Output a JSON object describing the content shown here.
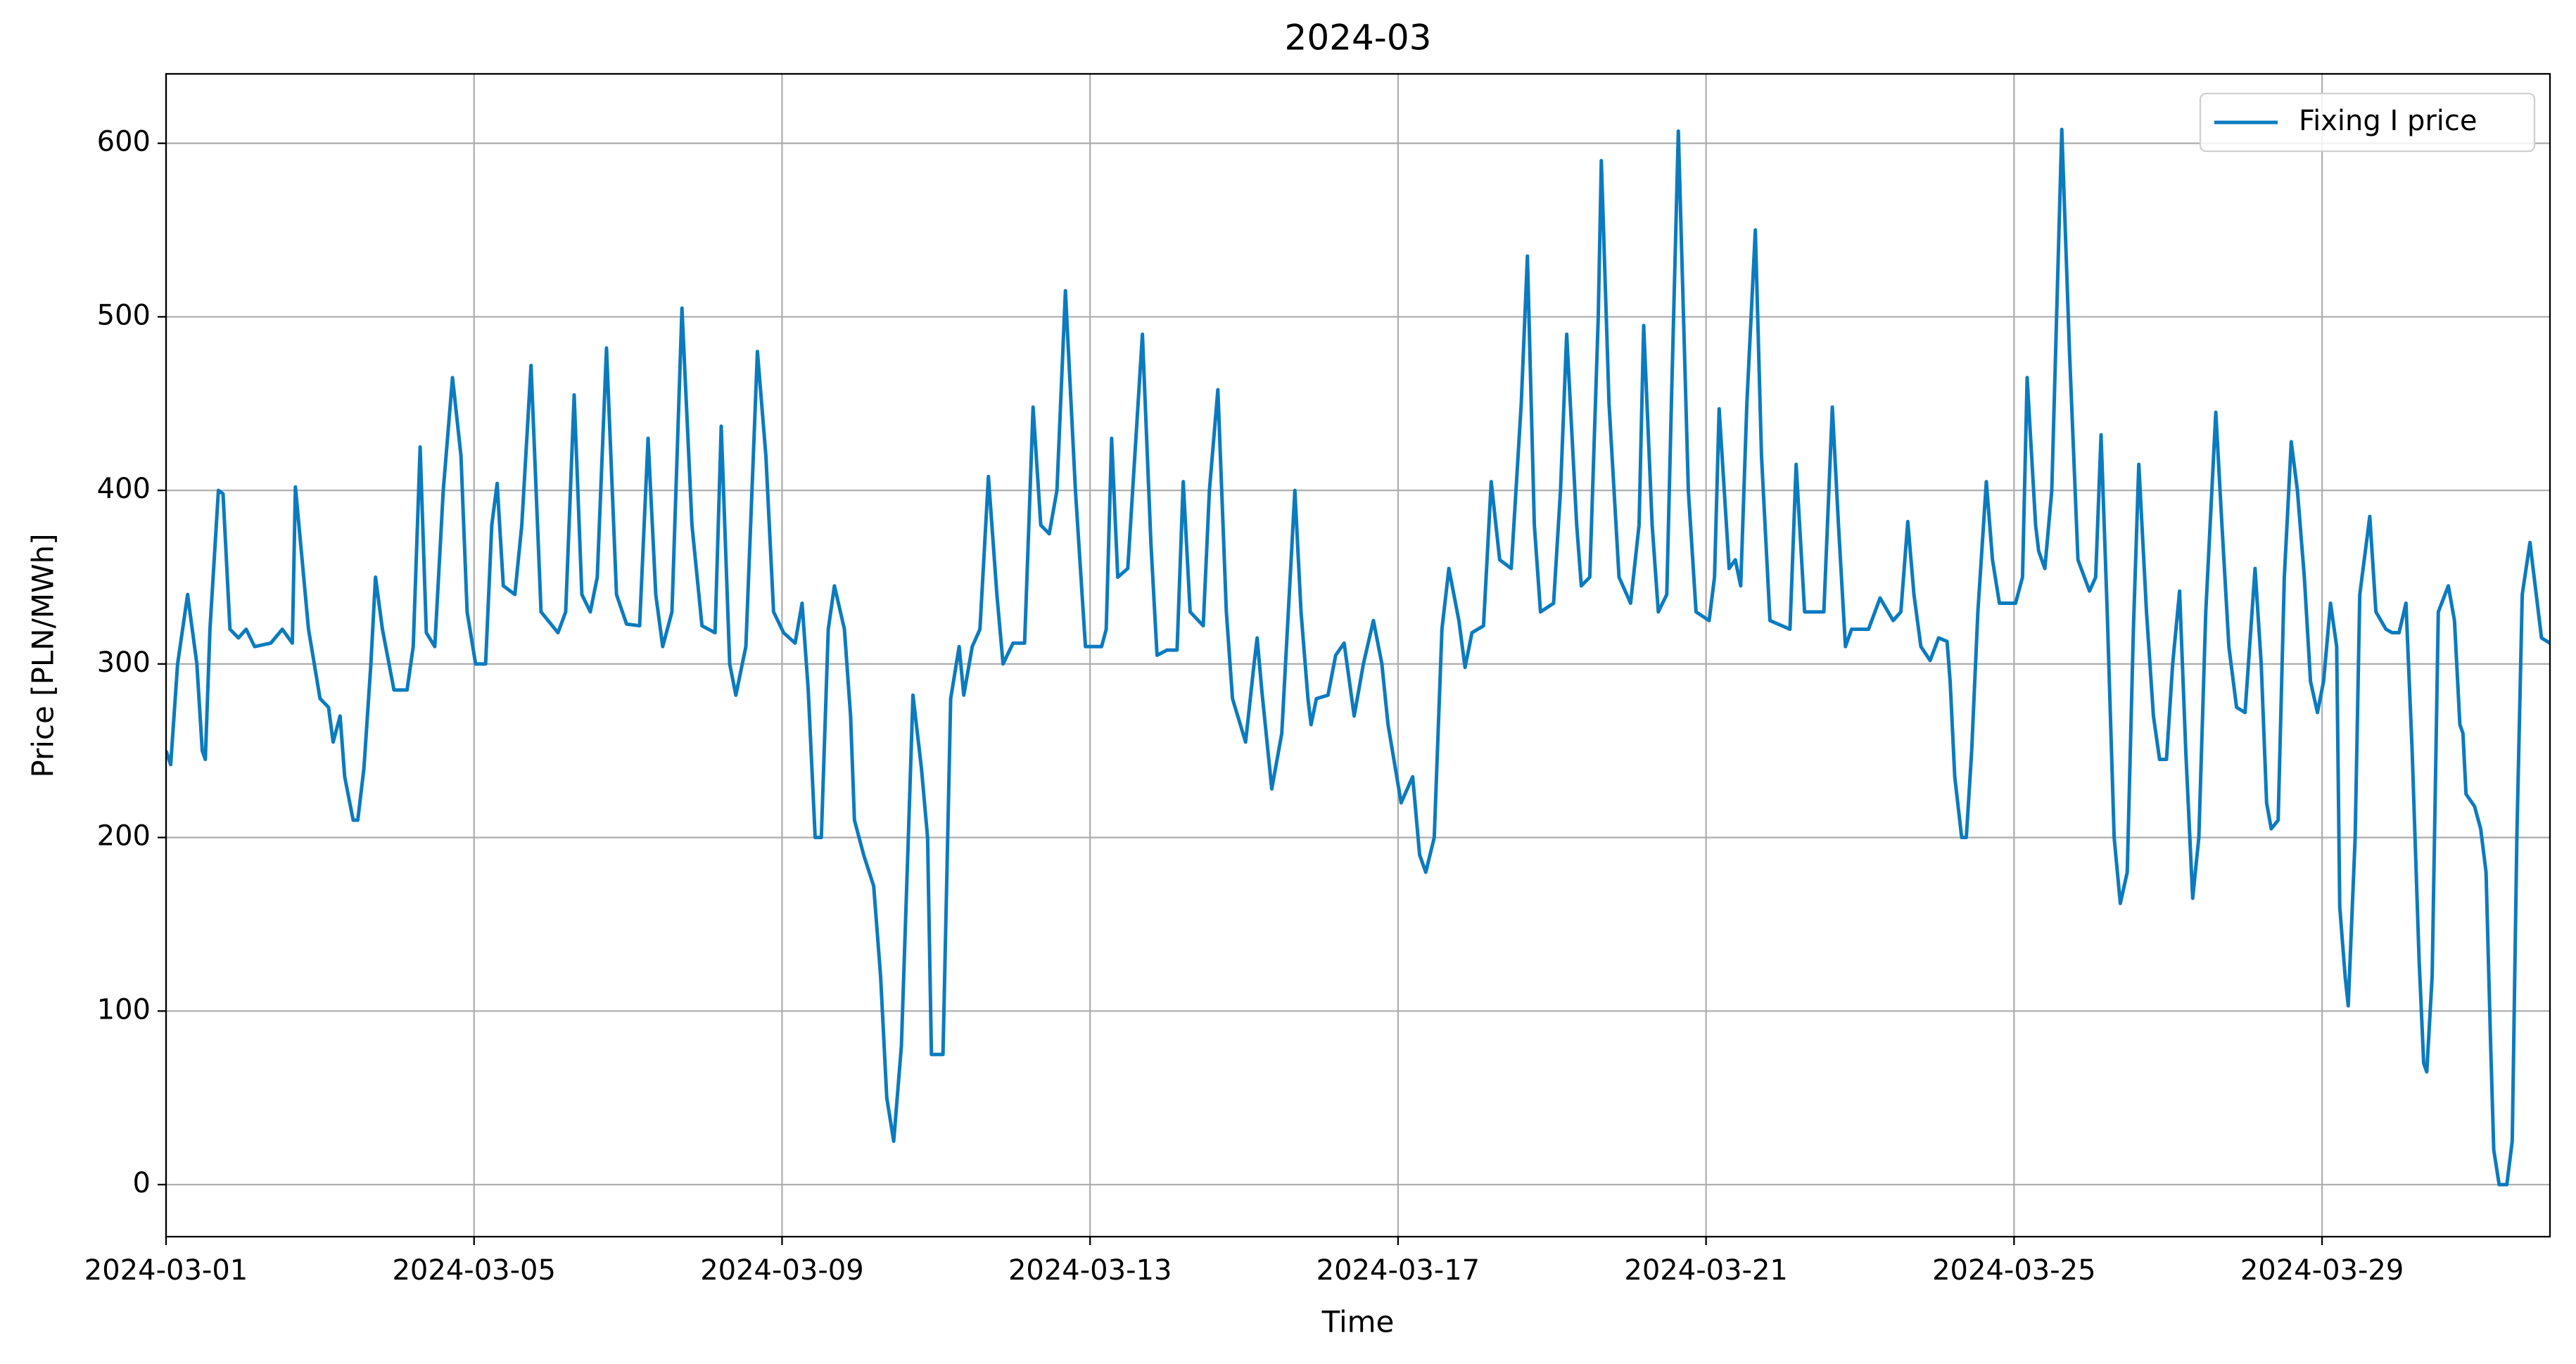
{
  "chart_data": {
    "type": "line",
    "title": "2024-03",
    "xlabel": "Time",
    "ylabel": "Price [PLN/MWh]",
    "xlim": [
      0,
      30.96
    ],
    "ylim": [
      -30,
      640
    ],
    "xticks": [
      {
        "value": 0,
        "label": "2024-03-01"
      },
      {
        "value": 4,
        "label": "2024-03-05"
      },
      {
        "value": 8,
        "label": "2024-03-09"
      },
      {
        "value": 12,
        "label": "2024-03-13"
      },
      {
        "value": 16,
        "label": "2024-03-17"
      },
      {
        "value": 20,
        "label": "2024-03-21"
      },
      {
        "value": 24,
        "label": "2024-03-25"
      },
      {
        "value": 28,
        "label": "2024-03-29"
      }
    ],
    "yticks": [
      0,
      100,
      200,
      300,
      400,
      500,
      600
    ],
    "grid": true,
    "legend": "upper right",
    "x": [
      0,
      0.06,
      0.15,
      0.28,
      0.4,
      0.47,
      0.51,
      0.57,
      0.68,
      0.74,
      0.83,
      0.94,
      1.04,
      1.15,
      1.36,
      1.51,
      1.64,
      1.68,
      1.85,
      2.0,
      2.11,
      2.17,
      2.26,
      2.32,
      2.43,
      2.49,
      2.57,
      2.66,
      2.72,
      2.81,
      2.96,
      3.13,
      3.21,
      3.3,
      3.38,
      3.49,
      3.6,
      3.72,
      3.83,
      3.91,
      4.02,
      4.15,
      4.23,
      4.3,
      4.38,
      4.53,
      4.62,
      4.74,
      4.87,
      5.09,
      5.19,
      5.3,
      5.4,
      5.51,
      5.6,
      5.72,
      5.85,
      5.98,
      6.15,
      6.26,
      6.36,
      6.45,
      6.57,
      6.7,
      6.83,
      6.96,
      7.13,
      7.21,
      7.32,
      7.4,
      7.53,
      7.68,
      7.79,
      7.89,
      8.02,
      8.17,
      8.26,
      8.34,
      8.43,
      8.51,
      8.6,
      8.68,
      8.81,
      8.89,
      8.94,
      9.06,
      9.19,
      9.28,
      9.36,
      9.45,
      9.55,
      9.64,
      9.7,
      9.81,
      9.89,
      9.94,
      10.09,
      10.19,
      10.3,
      10.36,
      10.47,
      10.57,
      10.68,
      10.79,
      10.87,
      11.0,
      11.15,
      11.26,
      11.36,
      11.47,
      11.57,
      11.68,
      11.81,
      11.94,
      12.15,
      12.21,
      12.28,
      12.36,
      12.49,
      12.68,
      12.79,
      12.87,
      13.0,
      13.13,
      13.21,
      13.3,
      13.47,
      13.55,
      13.66,
      13.77,
      13.85,
      14.02,
      14.13,
      14.17,
      14.23,
      14.36,
      14.49,
      14.66,
      14.74,
      14.83,
      14.87,
      14.94,
      15.09,
      15.19,
      15.3,
      15.43,
      15.55,
      15.68,
      15.79,
      15.87,
      16.04,
      16.19,
      16.28,
      16.36,
      16.47,
      16.57,
      16.66,
      16.79,
      16.87,
      16.96,
      17.11,
      17.21,
      17.32,
      17.47,
      17.6,
      17.68,
      17.77,
      17.85,
      18.02,
      18.11,
      18.19,
      18.32,
      18.38,
      18.49,
      18.6,
      18.64,
      18.74,
      18.87,
      19.02,
      19.13,
      19.19,
      19.3,
      19.38,
      19.49,
      19.55,
      19.64,
      19.77,
      19.87,
      20.04,
      20.11,
      20.17,
      20.3,
      20.38,
      20.45,
      20.53,
      20.64,
      20.72,
      20.83,
      21.09,
      21.17,
      21.28,
      21.38,
      21.53,
      21.64,
      21.72,
      21.81,
      21.89,
      22.11,
      22.26,
      22.43,
      22.53,
      22.62,
      22.7,
      22.79,
      22.91,
      23.02,
      23.13,
      23.17,
      23.23,
      23.32,
      23.38,
      23.45,
      23.53,
      23.64,
      23.72,
      23.81,
      24.02,
      24.11,
      24.17,
      24.28,
      24.32,
      24.4,
      24.49,
      24.62,
      24.72,
      24.83,
      24.98,
      25.06,
      25.13,
      25.21,
      25.3,
      25.38,
      25.47,
      25.55,
      25.62,
      25.72,
      25.81,
      25.89,
      25.98,
      26.06,
      26.15,
      26.23,
      26.32,
      26.4,
      26.49,
      26.62,
      26.7,
      26.79,
      26.89,
      27.0,
      27.13,
      27.21,
      27.28,
      27.34,
      27.43,
      27.51,
      27.6,
      27.68,
      27.77,
      27.85,
      27.94,
      28.02,
      28.11,
      28.19,
      28.23,
      28.3,
      28.34,
      28.43,
      28.49,
      28.62,
      28.7,
      28.83,
      28.91,
      29.0,
      29.09,
      29.17,
      29.26,
      29.32,
      29.36,
      29.43,
      29.51,
      29.64,
      29.72,
      29.79,
      29.83,
      29.87,
      29.98,
      30.06,
      30.13,
      30.19,
      30.23,
      30.3,
      30.4,
      30.47,
      30.53,
      30.6,
      30.7,
      30.85,
      30.96
    ],
    "series": [
      {
        "name": "Fixing I price",
        "color": "#0b7bbf",
        "values": [
          250,
          242,
          300,
          340,
          300,
          250,
          245,
          320,
          400,
          398,
          320,
          315,
          320,
          310,
          312,
          320,
          312,
          402,
          320,
          280,
          275,
          255,
          270,
          235,
          210,
          210,
          240,
          300,
          350,
          320,
          285,
          285,
          310,
          425,
          318,
          310,
          400,
          465,
          420,
          330,
          300,
          300,
          380,
          404,
          345,
          340,
          380,
          472,
          330,
          318,
          330,
          455,
          340,
          330,
          350,
          482,
          340,
          323,
          322,
          430,
          340,
          310,
          330,
          505,
          380,
          322,
          318,
          437,
          300,
          282,
          310,
          480,
          420,
          330,
          318,
          312,
          335,
          285,
          200,
          200,
          320,
          345,
          320,
          270,
          210,
          190,
          172,
          120,
          50,
          25,
          80,
          200,
          282,
          240,
          200,
          75,
          75,
          280,
          310,
          282,
          310,
          320,
          408,
          340,
          300,
          312,
          312,
          448,
          380,
          375,
          400,
          515,
          400,
          310,
          310,
          320,
          430,
          350,
          355,
          490,
          370,
          305,
          308,
          308,
          405,
          330,
          322,
          400,
          458,
          330,
          280,
          255,
          300,
          315,
          285,
          228,
          260,
          400,
          330,
          280,
          265,
          280,
          282,
          305,
          312,
          270,
          300,
          325,
          300,
          265,
          220,
          235,
          190,
          180,
          200,
          320,
          355,
          325,
          298,
          318,
          322,
          405,
          360,
          355,
          450,
          535,
          380,
          330,
          335,
          400,
          490,
          380,
          345,
          350,
          500,
          590,
          450,
          350,
          335,
          380,
          495,
          380,
          330,
          340,
          450,
          607,
          400,
          330,
          325,
          350,
          447,
          355,
          360,
          345,
          450,
          550,
          420,
          325,
          320,
          415,
          330,
          330,
          330,
          448,
          380,
          310,
          320,
          320,
          338,
          325,
          330,
          382,
          340,
          310,
          302,
          315,
          313,
          290,
          235,
          200,
          200,
          250,
          330,
          405,
          360,
          335,
          335,
          350,
          465,
          380,
          365,
          355,
          400,
          608,
          480,
          360,
          342,
          350,
          432,
          330,
          200,
          162,
          180,
          320,
          415,
          330,
          270,
          245,
          245,
          300,
          342,
          250,
          165,
          200,
          330,
          445,
          380,
          310,
          275,
          272,
          355,
          300,
          220,
          205,
          210,
          350,
          428,
          400,
          350,
          290,
          272,
          290,
          335,
          310,
          160,
          120,
          103,
          200,
          340,
          385,
          330,
          320,
          318,
          318,
          335,
          250,
          130,
          70,
          65,
          120,
          330,
          345,
          325,
          265,
          260,
          225,
          218,
          205,
          180,
          80,
          20,
          0,
          0,
          25,
          200,
          340,
          370,
          315,
          312
        ]
      }
    ]
  }
}
